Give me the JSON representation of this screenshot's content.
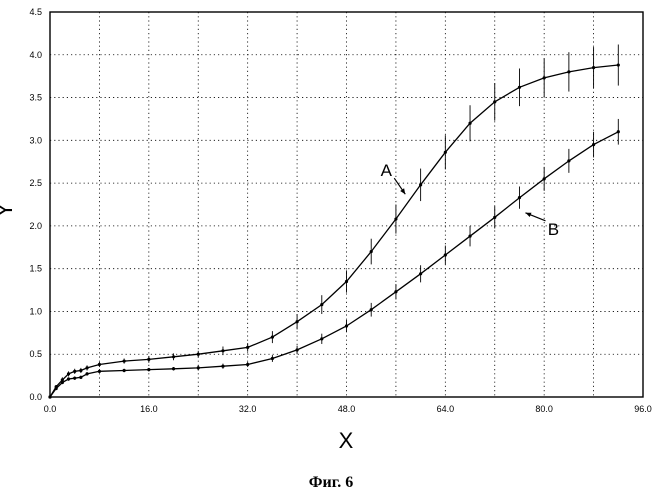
{
  "chart_data": {
    "type": "line",
    "xlabel": "X",
    "ylabel": "Y",
    "xlim": [
      0,
      96
    ],
    "ylim": [
      0,
      4.5
    ],
    "x_ticks": [
      "0.0",
      "16.0",
      "32.0",
      "48.0",
      "64.0",
      "80.0",
      "96.0"
    ],
    "x_tick_values": [
      0,
      16,
      32,
      48,
      64,
      80,
      96
    ],
    "y_ticks": [
      "0.0",
      "0.5",
      "1.0",
      "1.5",
      "2.0",
      "2.5",
      "3.0",
      "3.5",
      "4.0",
      "4.5"
    ],
    "y_tick_values": [
      0,
      0.5,
      1.0,
      1.5,
      2.0,
      2.5,
      3.0,
      3.5,
      4.0,
      4.5
    ],
    "grid": true,
    "grid_style": "dotted",
    "error_bars": true,
    "series": [
      {
        "name": "A",
        "x": [
          0,
          1,
          2,
          3,
          4,
          5,
          6,
          8,
          12,
          16,
          20,
          24,
          28,
          32,
          36,
          40,
          44,
          48,
          52,
          56,
          60,
          64,
          68,
          72,
          76,
          80,
          84,
          88,
          92
        ],
        "y": [
          0.0,
          0.12,
          0.2,
          0.27,
          0.3,
          0.31,
          0.34,
          0.38,
          0.42,
          0.44,
          0.47,
          0.5,
          0.54,
          0.58,
          0.7,
          0.88,
          1.08,
          1.35,
          1.7,
          2.08,
          2.48,
          2.86,
          3.2,
          3.45,
          3.62,
          3.73,
          3.8,
          3.85,
          3.88
        ],
        "err": [
          0.0,
          0.02,
          0.03,
          0.03,
          0.03,
          0.03,
          0.03,
          0.03,
          0.03,
          0.04,
          0.04,
          0.04,
          0.05,
          0.05,
          0.07,
          0.09,
          0.11,
          0.13,
          0.15,
          0.17,
          0.19,
          0.2,
          0.21,
          0.22,
          0.22,
          0.23,
          0.23,
          0.24,
          0.24
        ],
        "color": "#000000"
      },
      {
        "name": "B",
        "x": [
          0,
          1,
          2,
          3,
          4,
          5,
          6,
          8,
          12,
          16,
          20,
          24,
          28,
          32,
          36,
          40,
          44,
          48,
          52,
          56,
          60,
          64,
          68,
          72,
          76,
          80,
          84,
          88,
          92
        ],
        "y": [
          0.0,
          0.1,
          0.17,
          0.21,
          0.22,
          0.23,
          0.27,
          0.3,
          0.31,
          0.32,
          0.33,
          0.34,
          0.36,
          0.38,
          0.45,
          0.55,
          0.68,
          0.83,
          1.02,
          1.23,
          1.44,
          1.66,
          1.88,
          2.1,
          2.33,
          2.55,
          2.76,
          2.95,
          3.1
        ],
        "err": [
          0.0,
          0.02,
          0.02,
          0.02,
          0.02,
          0.02,
          0.02,
          0.02,
          0.02,
          0.02,
          0.02,
          0.03,
          0.03,
          0.03,
          0.04,
          0.05,
          0.06,
          0.07,
          0.08,
          0.09,
          0.1,
          0.11,
          0.12,
          0.13,
          0.13,
          0.14,
          0.14,
          0.15,
          0.15
        ],
        "color": "#000000"
      }
    ],
    "annotations": [
      {
        "text": "A",
        "target_x": 58,
        "target_y": 2.3
      },
      {
        "text": "B",
        "target_x": 76,
        "target_y": 2.2
      }
    ]
  },
  "caption": "Фиг. 6"
}
